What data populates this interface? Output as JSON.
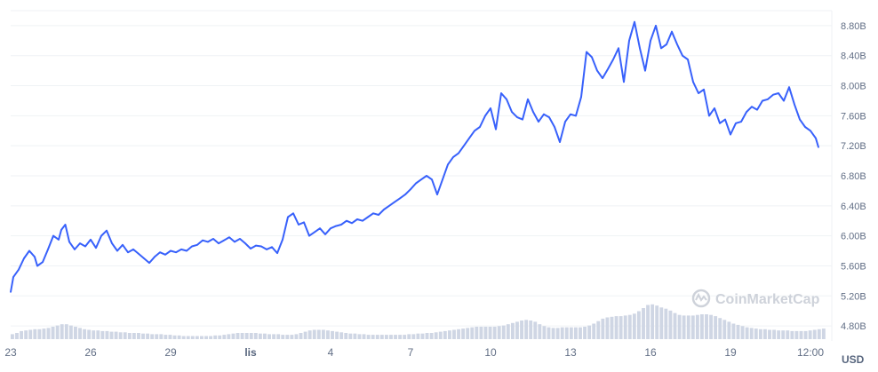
{
  "chart_data": {
    "type": "line",
    "title": "",
    "currency_label": "USD",
    "watermark": "CoinMarketCap",
    "colors": {
      "line": "#3861fb",
      "volume": "#cfd6e4",
      "grid": "#eff2f5",
      "text": "#616e85"
    },
    "grid": true,
    "y_axis_position": "right",
    "ylim": [
      4.6,
      9.0
    ],
    "y_ticks": [
      "4.80B",
      "5.20B",
      "5.60B",
      "6.00B",
      "6.40B",
      "6.80B",
      "7.20B",
      "7.60B",
      "8.00B",
      "8.40B",
      "8.80B"
    ],
    "x_ticks": [
      {
        "label": "23",
        "x": 0,
        "bold": false
      },
      {
        "label": "26",
        "x": 3,
        "bold": false
      },
      {
        "label": "29",
        "x": 6,
        "bold": false
      },
      {
        "label": "lis",
        "x": 9,
        "bold": true
      },
      {
        "label": "4",
        "x": 12,
        "bold": false
      },
      {
        "label": "7",
        "x": 15,
        "bold": false
      },
      {
        "label": "10",
        "x": 18,
        "bold": false
      },
      {
        "label": "13",
        "x": 21,
        "bold": false
      },
      {
        "label": "16",
        "x": 24,
        "bold": false
      },
      {
        "label": "19",
        "x": 27,
        "bold": false
      },
      {
        "label": "12:00",
        "x": 30,
        "bold": false
      }
    ],
    "xlim": [
      0,
      30.6
    ],
    "series": [
      {
        "values": [
          [
            0.0,
            5.25
          ],
          [
            0.1,
            5.45
          ],
          [
            0.3,
            5.55
          ],
          [
            0.5,
            5.7
          ],
          [
            0.7,
            5.8
          ],
          [
            0.9,
            5.72
          ],
          [
            1.0,
            5.6
          ],
          [
            1.2,
            5.65
          ],
          [
            1.4,
            5.82
          ],
          [
            1.6,
            6.0
          ],
          [
            1.8,
            5.95
          ],
          [
            1.9,
            6.08
          ],
          [
            2.05,
            6.15
          ],
          [
            2.2,
            5.92
          ],
          [
            2.4,
            5.82
          ],
          [
            2.6,
            5.9
          ],
          [
            2.8,
            5.86
          ],
          [
            3.0,
            5.95
          ],
          [
            3.2,
            5.84
          ],
          [
            3.4,
            6.0
          ],
          [
            3.6,
            6.07
          ],
          [
            3.8,
            5.9
          ],
          [
            4.0,
            5.8
          ],
          [
            4.2,
            5.88
          ],
          [
            4.4,
            5.78
          ],
          [
            4.6,
            5.82
          ],
          [
            4.8,
            5.76
          ],
          [
            5.0,
            5.7
          ],
          [
            5.2,
            5.64
          ],
          [
            5.4,
            5.72
          ],
          [
            5.6,
            5.78
          ],
          [
            5.8,
            5.75
          ],
          [
            6.0,
            5.8
          ],
          [
            6.2,
            5.78
          ],
          [
            6.4,
            5.82
          ],
          [
            6.6,
            5.8
          ],
          [
            6.8,
            5.86
          ],
          [
            7.0,
            5.88
          ],
          [
            7.2,
            5.94
          ],
          [
            7.4,
            5.92
          ],
          [
            7.6,
            5.96
          ],
          [
            7.8,
            5.9
          ],
          [
            8.0,
            5.94
          ],
          [
            8.2,
            5.98
          ],
          [
            8.4,
            5.92
          ],
          [
            8.6,
            5.96
          ],
          [
            8.8,
            5.9
          ],
          [
            9.0,
            5.83
          ],
          [
            9.2,
            5.87
          ],
          [
            9.4,
            5.86
          ],
          [
            9.6,
            5.82
          ],
          [
            9.8,
            5.85
          ],
          [
            10.0,
            5.77
          ],
          [
            10.2,
            5.95
          ],
          [
            10.4,
            6.25
          ],
          [
            10.6,
            6.3
          ],
          [
            10.8,
            6.15
          ],
          [
            11.0,
            6.18
          ],
          [
            11.2,
            6.0
          ],
          [
            11.4,
            6.05
          ],
          [
            11.6,
            6.1
          ],
          [
            11.8,
            6.02
          ],
          [
            12.0,
            6.1
          ],
          [
            12.2,
            6.13
          ],
          [
            12.4,
            6.15
          ],
          [
            12.6,
            6.2
          ],
          [
            12.8,
            6.17
          ],
          [
            13.0,
            6.22
          ],
          [
            13.2,
            6.2
          ],
          [
            13.4,
            6.25
          ],
          [
            13.6,
            6.3
          ],
          [
            13.8,
            6.28
          ],
          [
            14.0,
            6.35
          ],
          [
            14.2,
            6.4
          ],
          [
            14.4,
            6.45
          ],
          [
            14.6,
            6.5
          ],
          [
            14.8,
            6.55
          ],
          [
            15.0,
            6.62
          ],
          [
            15.2,
            6.7
          ],
          [
            15.4,
            6.75
          ],
          [
            15.6,
            6.8
          ],
          [
            15.8,
            6.75
          ],
          [
            16.0,
            6.55
          ],
          [
            16.2,
            6.75
          ],
          [
            16.4,
            6.95
          ],
          [
            16.6,
            7.05
          ],
          [
            16.8,
            7.1
          ],
          [
            17.0,
            7.2
          ],
          [
            17.2,
            7.3
          ],
          [
            17.4,
            7.4
          ],
          [
            17.6,
            7.45
          ],
          [
            17.8,
            7.6
          ],
          [
            18.0,
            7.7
          ],
          [
            18.2,
            7.42
          ],
          [
            18.4,
            7.9
          ],
          [
            18.6,
            7.82
          ],
          [
            18.8,
            7.65
          ],
          [
            19.0,
            7.58
          ],
          [
            19.2,
            7.55
          ],
          [
            19.4,
            7.82
          ],
          [
            19.6,
            7.65
          ],
          [
            19.8,
            7.52
          ],
          [
            20.0,
            7.62
          ],
          [
            20.2,
            7.58
          ],
          [
            20.4,
            7.45
          ],
          [
            20.6,
            7.25
          ],
          [
            20.8,
            7.52
          ],
          [
            21.0,
            7.62
          ],
          [
            21.2,
            7.6
          ],
          [
            21.4,
            7.85
          ],
          [
            21.6,
            8.45
          ],
          [
            21.8,
            8.38
          ],
          [
            22.0,
            8.2
          ],
          [
            22.2,
            8.1
          ],
          [
            22.4,
            8.22
          ],
          [
            22.6,
            8.35
          ],
          [
            22.8,
            8.5
          ],
          [
            23.0,
            8.05
          ],
          [
            23.2,
            8.6
          ],
          [
            23.4,
            8.85
          ],
          [
            23.6,
            8.5
          ],
          [
            23.8,
            8.2
          ],
          [
            24.0,
            8.6
          ],
          [
            24.2,
            8.8
          ],
          [
            24.4,
            8.5
          ],
          [
            24.6,
            8.55
          ],
          [
            24.8,
            8.72
          ],
          [
            25.0,
            8.55
          ],
          [
            25.2,
            8.4
          ],
          [
            25.4,
            8.35
          ],
          [
            25.6,
            8.05
          ],
          [
            25.8,
            7.9
          ],
          [
            26.0,
            7.95
          ],
          [
            26.2,
            7.6
          ],
          [
            26.4,
            7.7
          ],
          [
            26.6,
            7.5
          ],
          [
            26.8,
            7.55
          ],
          [
            27.0,
            7.35
          ],
          [
            27.2,
            7.5
          ],
          [
            27.4,
            7.52
          ],
          [
            27.6,
            7.65
          ],
          [
            27.8,
            7.72
          ],
          [
            28.0,
            7.68
          ],
          [
            28.2,
            7.8
          ],
          [
            28.4,
            7.82
          ],
          [
            28.6,
            7.88
          ],
          [
            28.8,
            7.9
          ],
          [
            29.0,
            7.8
          ],
          [
            29.2,
            7.98
          ],
          [
            29.4,
            7.75
          ],
          [
            29.6,
            7.55
          ],
          [
            29.8,
            7.45
          ],
          [
            30.0,
            7.4
          ],
          [
            30.2,
            7.3
          ],
          [
            30.3,
            7.18
          ]
        ]
      }
    ],
    "volume": [
      0.08,
      0.1,
      0.13,
      0.14,
      0.15,
      0.16,
      0.16,
      0.17,
      0.18,
      0.2,
      0.22,
      0.24,
      0.24,
      0.22,
      0.2,
      0.18,
      0.16,
      0.15,
      0.14,
      0.14,
      0.13,
      0.13,
      0.12,
      0.12,
      0.11,
      0.11,
      0.1,
      0.1,
      0.1,
      0.09,
      0.09,
      0.08,
      0.08,
      0.08,
      0.07,
      0.07,
      0.06,
      0.06,
      0.05,
      0.05,
      0.05,
      0.05,
      0.05,
      0.05,
      0.05,
      0.06,
      0.06,
      0.07,
      0.08,
      0.09,
      0.1,
      0.1,
      0.1,
      0.1,
      0.1,
      0.09,
      0.09,
      0.08,
      0.08,
      0.08,
      0.07,
      0.07,
      0.07,
      0.08,
      0.1,
      0.12,
      0.14,
      0.15,
      0.15,
      0.15,
      0.14,
      0.13,
      0.12,
      0.11,
      0.1,
      0.09,
      0.09,
      0.08,
      0.08,
      0.07,
      0.07,
      0.07,
      0.07,
      0.07,
      0.07,
      0.07,
      0.07,
      0.07,
      0.08,
      0.08,
      0.09,
      0.09,
      0.1,
      0.1,
      0.11,
      0.12,
      0.13,
      0.14,
      0.15,
      0.16,
      0.17,
      0.18,
      0.19,
      0.2,
      0.2,
      0.2,
      0.2,
      0.2,
      0.21,
      0.22,
      0.24,
      0.26,
      0.28,
      0.3,
      0.31,
      0.3,
      0.28,
      0.24,
      0.21,
      0.19,
      0.18,
      0.18,
      0.19,
      0.19,
      0.19,
      0.19,
      0.19,
      0.2,
      0.22,
      0.25,
      0.29,
      0.33,
      0.35,
      0.36,
      0.37,
      0.37,
      0.38,
      0.39,
      0.41,
      0.45,
      0.5,
      0.55,
      0.56,
      0.54,
      0.51,
      0.49,
      0.46,
      0.42,
      0.39,
      0.38,
      0.38,
      0.38,
      0.39,
      0.4,
      0.4,
      0.39,
      0.37,
      0.34,
      0.31,
      0.28,
      0.25,
      0.23,
      0.21,
      0.19,
      0.18,
      0.17,
      0.16,
      0.16,
      0.15,
      0.15,
      0.14,
      0.14,
      0.14,
      0.13,
      0.13,
      0.13,
      0.13,
      0.14,
      0.15,
      0.16,
      0.17
    ]
  }
}
